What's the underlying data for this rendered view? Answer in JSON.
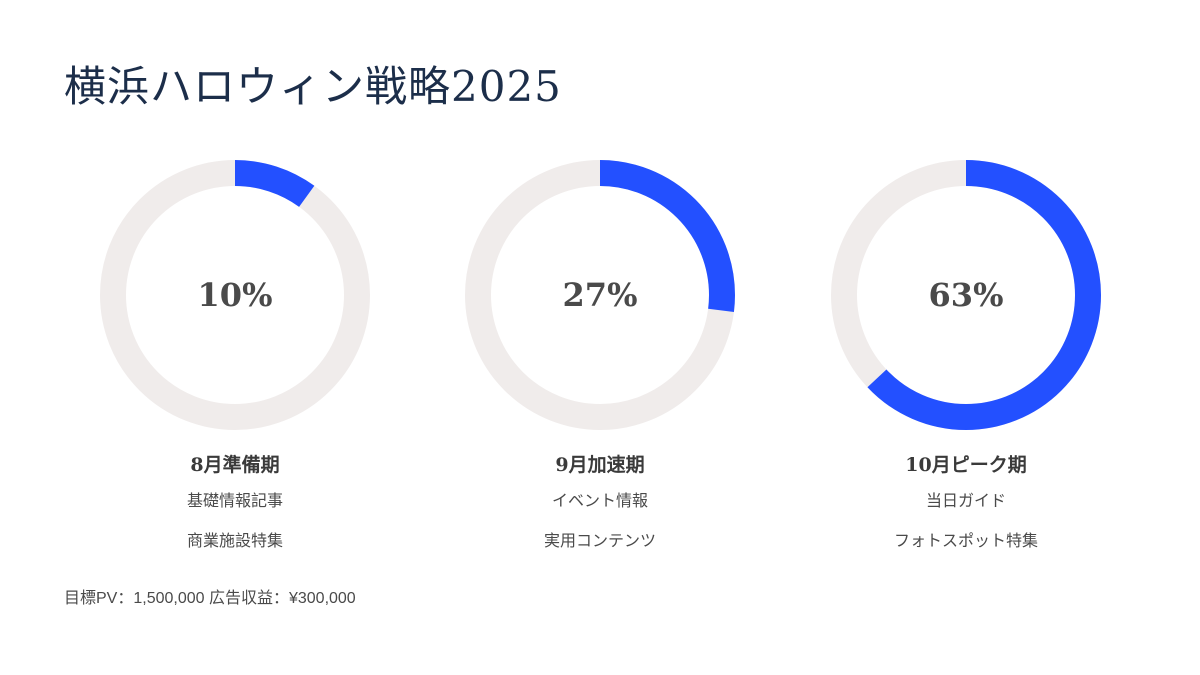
{
  "title": "横浜ハロウィン戦略2025",
  "footer": "目標PV：1,500,000 広告収益：¥300,000",
  "colors": {
    "title": "#1c2e4a",
    "accent": "#2350ff",
    "track": "#f0eceb",
    "text": "#4a4a4a"
  },
  "chart_data": [
    {
      "type": "donut",
      "value": 10,
      "label": "10%",
      "category": "8月準備期",
      "items": [
        "基礎情報記事",
        "商業施設特集"
      ]
    },
    {
      "type": "donut",
      "value": 27,
      "label": "27%",
      "category": "9月加速期",
      "items": [
        "イベント情報",
        "実用コンテンツ"
      ]
    },
    {
      "type": "donut",
      "value": 63,
      "label": "63%",
      "category": "10月ピーク期",
      "items": [
        "当日ガイド",
        "フォトスポット特集"
      ]
    }
  ]
}
